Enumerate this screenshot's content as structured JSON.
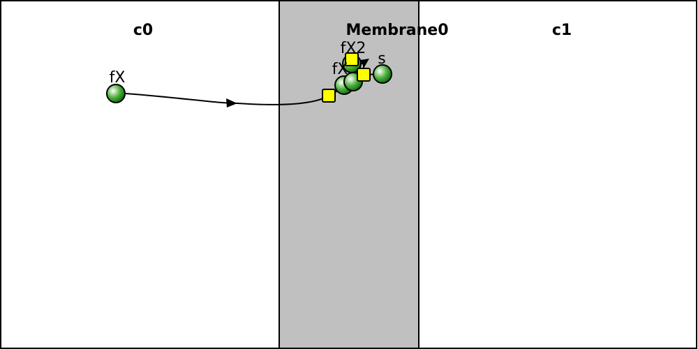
{
  "diagram": {
    "compartments": [
      {
        "id": "c0",
        "title": "c0"
      },
      {
        "id": "membrane0",
        "title": "Membrane0"
      },
      {
        "id": "c1",
        "title": "c1"
      }
    ],
    "species": [
      {
        "id": "fX",
        "label": "fX"
      },
      {
        "id": "fX2",
        "label": "fX2"
      },
      {
        "id": "fX_partial",
        "label": "fX"
      },
      {
        "id": "s",
        "label": "s"
      },
      {
        "id": "fX_hidden_a",
        "label": ""
      },
      {
        "id": "fX_hidden_b",
        "label": ""
      }
    ],
    "colors": {
      "membrane_fill": "#c0c0c0",
      "border": "#000000",
      "species_fill_dark": "#0a7a0a",
      "species_fill_light": "#ffffff",
      "reaction_node": "#ffff00"
    }
  }
}
